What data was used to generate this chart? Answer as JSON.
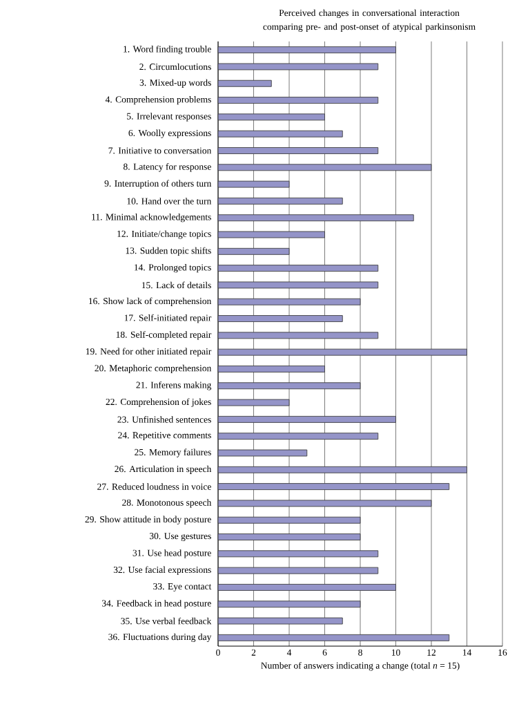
{
  "chart_data": {
    "type": "bar",
    "orientation": "horizontal",
    "title": "Perceived changes in conversational interaction comparing pre- and post-onset of atypical parkinsonism",
    "xlabel": "Number of answers indicating a change (total *n* = 15)",
    "categories": [
      "1. Word finding trouble",
      "2. Circumlocutions",
      "3. Mixed-up words",
      "4. Comprehension problems",
      "5. Irrelevant responses",
      "6. Woolly expressions",
      "7. Initiative to conversation",
      "8. Latency for response",
      "9. Interruption of others turn",
      "10. Hand over the turn",
      "11. Minimal acknowledgements",
      "12. Initiate/change topics",
      "13. Sudden topic shifts",
      "14. Prolonged topics",
      "15. Lack of details",
      "16. Show lack of comprehension",
      "17. Self-initiated repair",
      "18. Self-completed repair",
      "19. Need for other initiated repair",
      "20. Metaphoric comprehension",
      "21. Inferens making",
      "22. Comprehension of jokes",
      "23. Unfinished sentences",
      "24. Repetitive comments",
      "25. Memory failures",
      "26. Articulation in speech",
      "27. Reduced loudness in voice",
      "28. Monotonous speech",
      "29. Show attitude in body posture",
      "30. Use gestures",
      "31. Use head posture",
      "32. Use facial expressions",
      "33. Eye contact",
      "34. Feedback in head posture",
      "35. Use verbal feedback",
      "36. Fluctuations during day"
    ],
    "values": [
      10,
      9,
      3,
      9,
      6,
      7,
      9,
      12,
      4,
      7,
      11,
      6,
      4,
      9,
      9,
      8,
      7,
      9,
      14,
      6,
      8,
      4,
      10,
      9,
      5,
      14,
      13,
      12,
      8,
      8,
      9,
      9,
      10,
      8,
      7,
      13
    ],
    "color": "#9494c8",
    "xlim": [
      0,
      16
    ],
    "xticks": [
      0,
      2,
      4,
      6,
      8,
      10,
      12,
      14,
      16
    ],
    "grid": "x"
  }
}
